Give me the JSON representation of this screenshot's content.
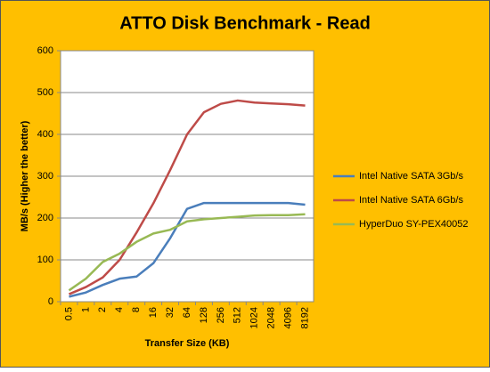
{
  "chart_data": {
    "type": "line",
    "title": "ATTO Disk Benchmark - Read",
    "x_label": "Transfer Size (KB)",
    "y_label": "MB/s (Higher the better)",
    "categories": [
      "0.5",
      "1",
      "2",
      "4",
      "8",
      "16",
      "32",
      "64",
      "128",
      "256",
      "512",
      "1024",
      "2048",
      "4096",
      "8192"
    ],
    "series": [
      {
        "name": "Intel Native SATA 3Gb/s",
        "color": "#4a7ebb",
        "values": [
          12,
          22,
          40,
          55,
          60,
          92,
          152,
          222,
          236,
          236,
          236,
          236,
          236,
          236,
          232
        ]
      },
      {
        "name": "Intel Native SATA  6Gb/s",
        "color": "#be4b48",
        "values": [
          18,
          35,
          58,
          100,
          165,
          235,
          315,
          400,
          453,
          473,
          481,
          476,
          474,
          472,
          469
        ]
      },
      {
        "name": "HyperDuo SY-PEX40052",
        "color": "#98b954",
        "values": [
          27,
          55,
          95,
          115,
          143,
          163,
          172,
          192,
          197,
          200,
          203,
          206,
          207,
          207,
          209
        ]
      }
    ],
    "ylim": [
      0,
      600
    ],
    "yticks": [
      0,
      100,
      200,
      300,
      400,
      500,
      600
    ],
    "grid": true,
    "legend": "right"
  }
}
